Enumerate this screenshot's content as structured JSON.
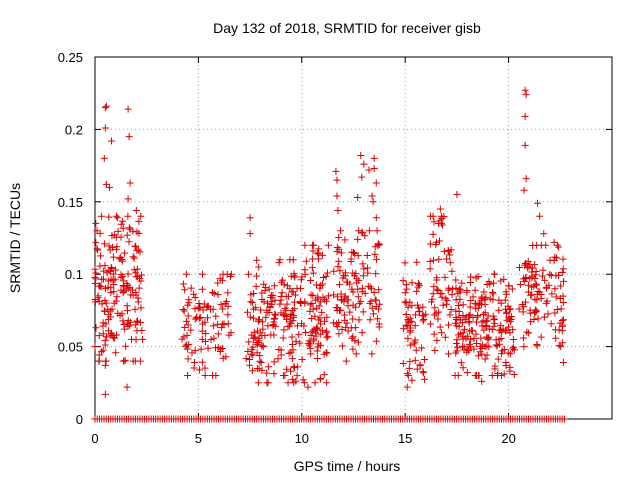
{
  "chart_data": {
    "type": "scatter",
    "title": "Day 132 of 2018, SRMTID for receiver gisb",
    "xlabel": "GPS time / hours",
    "ylabel": "SRMTID / TECUs",
    "xlim": [
      0,
      25
    ],
    "ylim": [
      0,
      0.25
    ],
    "x_ticks": [
      0,
      5,
      10,
      15,
      20
    ],
    "x_tick_labels": [
      "0",
      "5",
      "10",
      "15",
      "20"
    ],
    "y_ticks": [
      0,
      0.05,
      0.1,
      0.15,
      0.2,
      0.25
    ],
    "y_tick_labels": [
      "0",
      "0.05",
      "0.1",
      "0.15",
      "0.2",
      "0.25"
    ],
    "grid": true,
    "marker": "+",
    "marker_color": "#dd0000",
    "series": [
      {
        "name": "SRMTID",
        "color": "#dd0000",
        "clusters": [
          {
            "x_range": [
              0.0,
              2.3
            ],
            "y_range": [
              0.04,
              0.14
            ],
            "count": 180
          },
          {
            "x_range": [
              4.2,
              6.6
            ],
            "y_range": [
              0.03,
              0.1
            ],
            "count": 100
          },
          {
            "x_range": [
              7.3,
              10.0
            ],
            "y_range": [
              0.025,
              0.11
            ],
            "count": 170
          },
          {
            "x_range": [
              10.0,
              11.3
            ],
            "y_range": [
              0.025,
              0.12
            ],
            "count": 90
          },
          {
            "x_range": [
              11.5,
              13.8
            ],
            "y_range": [
              0.045,
              0.13
            ],
            "count": 120
          },
          {
            "x_range": [
              14.9,
              16.0
            ],
            "y_range": [
              0.025,
              0.11
            ],
            "count": 60
          },
          {
            "x_range": [
              16.2,
              17.3
            ],
            "y_range": [
              0.045,
              0.14
            ],
            "count": 60
          },
          {
            "x_range": [
              17.4,
              20.3
            ],
            "y_range": [
              0.03,
              0.1
            ],
            "count": 200
          },
          {
            "x_range": [
              20.5,
              22.7
            ],
            "y_range": [
              0.05,
              0.12
            ],
            "count": 110
          }
        ],
        "points": [
          [
            0.0,
            0.05
          ],
          [
            0.05,
            0.063
          ],
          [
            0.1,
            0.13
          ],
          [
            0.15,
            0.085
          ],
          [
            0.5,
            0.215
          ],
          [
            0.55,
            0.216
          ],
          [
            0.5,
            0.201
          ],
          [
            0.45,
            0.18
          ],
          [
            0.55,
            0.162
          ],
          [
            0.8,
            0.192
          ],
          [
            0.7,
            0.16
          ],
          [
            0.5,
            0.037
          ],
          [
            0.5,
            0.017
          ],
          [
            1.6,
            0.214
          ],
          [
            1.65,
            0.195
          ],
          [
            1.7,
            0.163
          ],
          [
            1.6,
            0.152
          ],
          [
            1.55,
            0.022
          ],
          [
            2.0,
            0.144
          ],
          [
            7.5,
            0.139
          ],
          [
            7.5,
            0.128
          ],
          [
            8.9,
            0.108
          ],
          [
            10.3,
            0.022
          ],
          [
            10.9,
            0.028
          ],
          [
            11.0,
            0.113
          ],
          [
            11.65,
            0.171
          ],
          [
            11.7,
            0.165
          ],
          [
            11.7,
            0.154
          ],
          [
            11.75,
            0.144
          ],
          [
            12.15,
            0.04
          ],
          [
            12.5,
            0.115
          ],
          [
            12.7,
            0.153
          ],
          [
            12.75,
            0.13
          ],
          [
            12.85,
            0.182
          ],
          [
            12.9,
            0.167
          ],
          [
            13.0,
            0.176
          ],
          [
            13.25,
            0.172
          ],
          [
            13.4,
            0.154
          ],
          [
            13.45,
            0.15
          ],
          [
            13.5,
            0.18
          ],
          [
            13.5,
            0.173
          ],
          [
            13.6,
            0.163
          ],
          [
            13.6,
            0.139
          ],
          [
            13.7,
            0.121
          ],
          [
            15.1,
            0.022
          ],
          [
            15.15,
            0.03
          ],
          [
            15.2,
            0.035
          ],
          [
            16.7,
            0.145
          ],
          [
            16.75,
            0.14
          ],
          [
            16.8,
            0.134
          ],
          [
            17.1,
            0.116
          ],
          [
            17.5,
            0.047
          ],
          [
            17.5,
            0.155
          ],
          [
            18.7,
            0.026
          ],
          [
            18.9,
            0.084
          ],
          [
            20.8,
            0.227
          ],
          [
            20.85,
            0.224
          ],
          [
            20.8,
            0.209
          ],
          [
            20.8,
            0.189
          ],
          [
            20.85,
            0.166
          ],
          [
            20.75,
            0.158
          ],
          [
            21.4,
            0.149
          ],
          [
            21.5,
            0.14
          ],
          [
            21.7,
            0.128
          ],
          [
            22.2,
            0.122
          ],
          [
            22.65,
            0.039
          ]
        ],
        "baseline": {
          "y": 0,
          "x_range": [
            0.0,
            22.7
          ],
          "count": 210
        }
      }
    ]
  }
}
